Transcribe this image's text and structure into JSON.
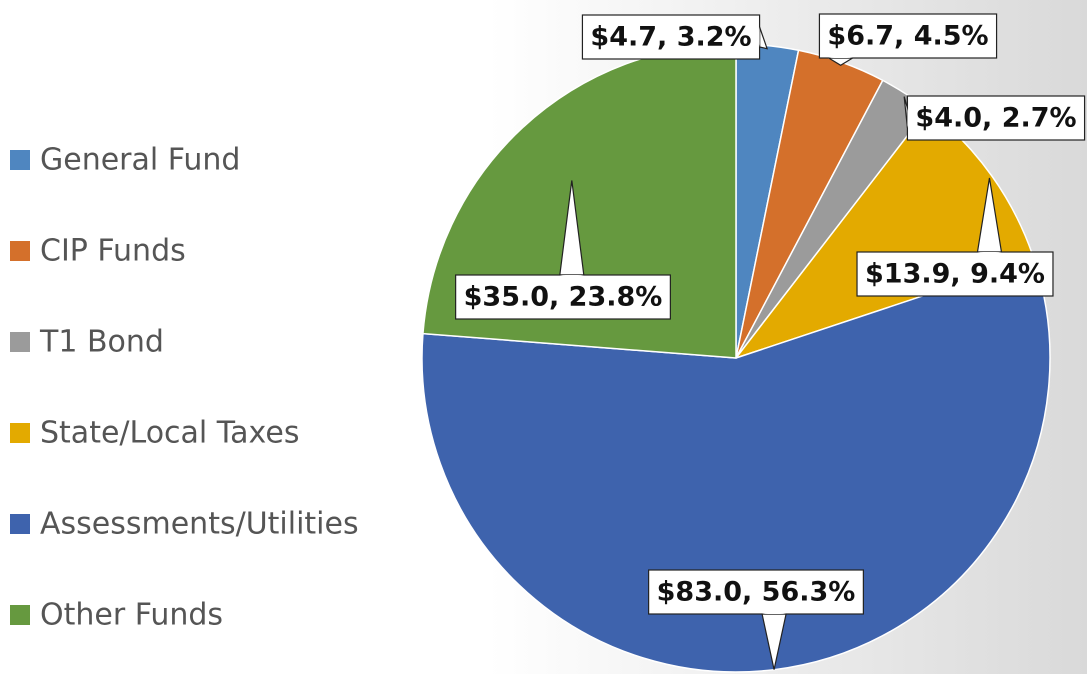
{
  "chart_data": {
    "type": "pie",
    "categories": [
      "General Fund",
      "CIP Funds",
      "T1 Bond",
      "State/Local Taxes",
      "Assessments/Utilities",
      "Other Funds"
    ],
    "values": [
      4.7,
      6.7,
      4.0,
      13.9,
      83.0,
      35.0
    ],
    "value_labels": [
      "$4.7, 3.2%",
      "$6.7, 4.5%",
      "$4.0, 2.7%",
      "$13.9, 9.4%",
      "$83.0, 56.3%",
      "$35.0, 23.8%"
    ],
    "colors": [
      "#4f86c0",
      "#d4702b",
      "#9b9b9b",
      "#e3aa00",
      "#3e63ad",
      "#66993f"
    ],
    "legend": "left"
  }
}
